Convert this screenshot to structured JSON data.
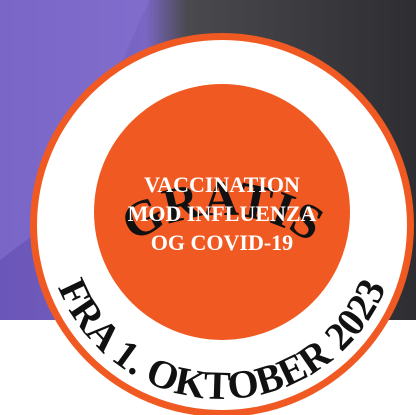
{
  "badge": {
    "top_text": "GRATIS",
    "center_lines": [
      "VACCINATION",
      "MOD INFLUENZA",
      "OG COVID-19"
    ],
    "bottom_text": "FRA 1. OKTOBER 2023"
  }
}
